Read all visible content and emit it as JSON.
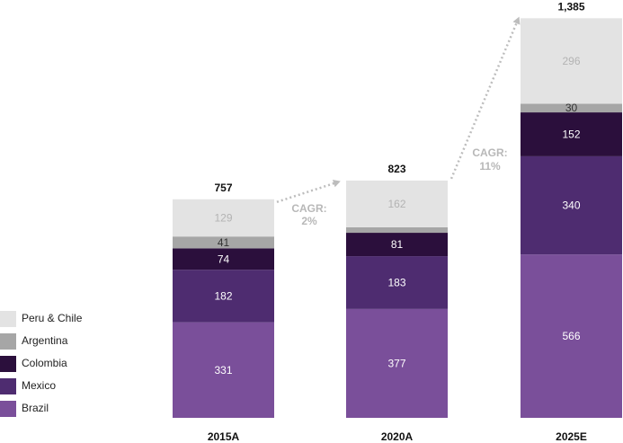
{
  "chart_data": {
    "type": "bar",
    "stacked": true,
    "categories": [
      "2015A",
      "2020A",
      "2025E"
    ],
    "totals": [
      "757",
      "823",
      "1,385"
    ],
    "series": [
      {
        "name": "Brazil",
        "values": [
          331,
          377,
          566
        ],
        "color": "#7a4f9a",
        "label_color": "#ffffff"
      },
      {
        "name": "Mexico",
        "values": [
          182,
          183,
          340
        ],
        "color": "#4e2c70",
        "label_color": "#ffffff"
      },
      {
        "name": "Colombia",
        "values": [
          74,
          81,
          152
        ],
        "color": "#2b0f3c",
        "label_color": "#ffffff"
      },
      {
        "name": "Argentina",
        "values": [
          41,
          19,
          30
        ],
        "labels": [
          "41",
          "",
          "30"
        ],
        "color": "#a6a6a6",
        "label_color": "#333333"
      },
      {
        "name": "Peru & Chile",
        "values": [
          129,
          162,
          296
        ],
        "color": "#e3e3e3",
        "label_color": "#b3b3b3"
      }
    ],
    "annotations": [
      {
        "text_lines": [
          "CAGR:",
          "2%"
        ],
        "from": "2015A",
        "to": "2020A"
      },
      {
        "text_lines": [
          "CAGR:",
          "11%"
        ],
        "from": "2020A",
        "to": "2025E"
      }
    ],
    "legend_position": "bottom-left",
    "grid": false,
    "ylim": [
      0,
      1385
    ]
  }
}
